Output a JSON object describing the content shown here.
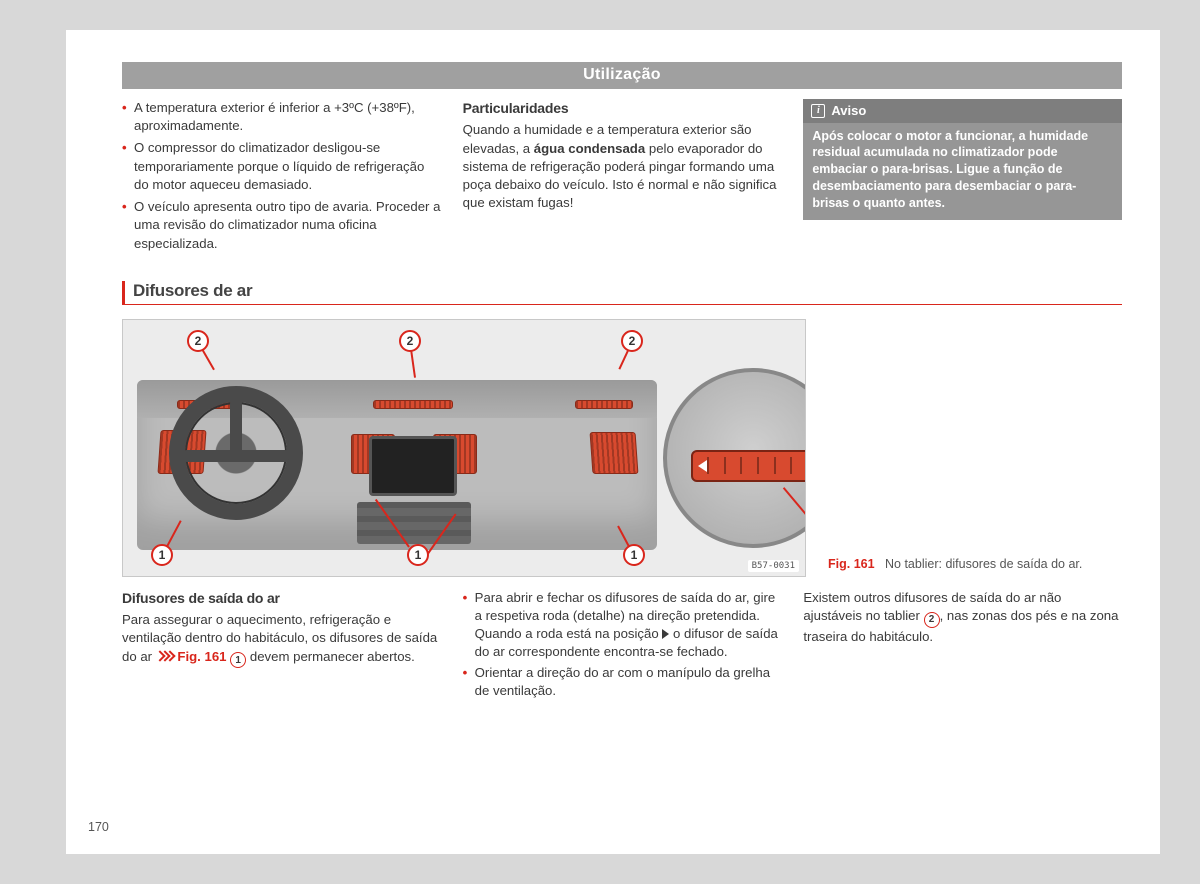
{
  "page_number": "170",
  "header": {
    "title": "Utilização"
  },
  "colors": {
    "accent_red": "#d9261c",
    "header_grey": "#a0a0a0",
    "aviso_bg": "#969696",
    "aviso_hd": "#7e7e7e",
    "page_bg": "#d8d8d8",
    "vent_orange": "#d84a2f"
  },
  "top": {
    "left_bullets": [
      "A temperatura exterior é inferior a +3ºC (+38ºF), aproximadamente.",
      "O compressor do climatizador desligou-se temporariamente porque o líquido de refrigeração do motor aqueceu demasiado.",
      "O veículo apresenta outro tipo de avaria. Proceder a uma revisão do climatizador numa oficina especializada."
    ],
    "mid": {
      "heading": "Particularidades",
      "text_pre": "Quando a humidade e a temperatura exterior são elevadas, a ",
      "text_bold": "água condensada",
      "text_post": " pelo evaporador do sistema de refrigeração poderá pingar formando uma poça debaixo do veículo. Isto é normal e não significa que existam fugas!"
    },
    "aviso": {
      "label": "Aviso",
      "body": "Após colocar o motor a funcionar, a humidade residual acumulada no climatizador pode embaciar o para-brisas. Ligue a função de desembaciamento para desembaciar o para-brisas o quanto antes."
    }
  },
  "section": {
    "title": "Difusores de ar"
  },
  "figure": {
    "code": "B57-0031",
    "caption_ref": "Fig. 161",
    "caption_text": "No tablier: difusores de saída do ar.",
    "callouts": {
      "adjustable": "1",
      "fixed": "2"
    }
  },
  "bottom": {
    "col1": {
      "heading": "Difusores de saída do ar",
      "text_a": "Para assegurar o aquecimento, refrigeração e ventilação dentro do habitáculo, os difusores de saída do ar ",
      "fig_ref": "Fig. 161",
      "circ": "1",
      "text_b": " devem permanecer abertos."
    },
    "col2": {
      "b1_a": "Para abrir e fechar os difusores de saída do ar, gire a respetiva roda (detalhe) na direção pretendida. Quando a roda está na posição ",
      "b1_b": " o difusor de saída do ar correspondente encontra-se fechado.",
      "b2": "Orientar a direção do ar com o manípulo da grelha de ventilação."
    },
    "col3": {
      "text_a": "Existem outros difusores de saída do ar não ajustáveis no tablier ",
      "circ": "2",
      "text_b": ", nas zonas dos pés e na zona traseira do habitáculo."
    }
  }
}
